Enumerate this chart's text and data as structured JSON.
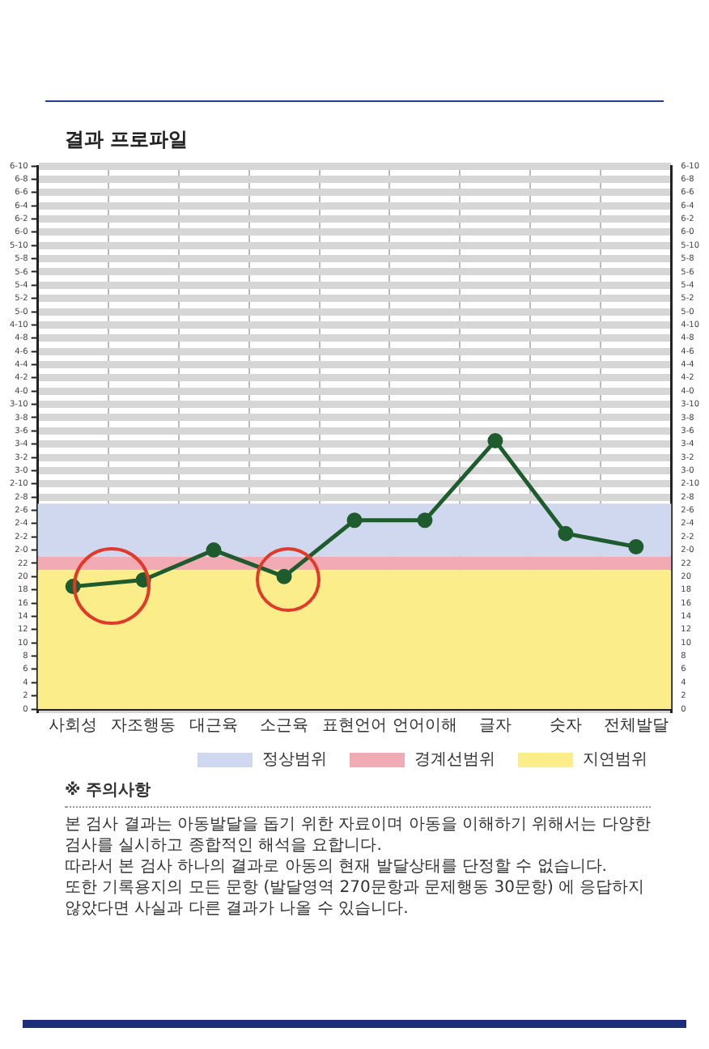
{
  "chart_data": {
    "type": "line",
    "title": "결과 프로파일",
    "categories": [
      "사회성",
      "자조행동",
      "대근육",
      "소근육",
      "표현언어",
      "언어이해",
      "글자",
      "숫자",
      "전체발달"
    ],
    "series": [
      {
        "color": "#1e5c2e",
        "values": [
          18.5,
          19.5,
          24,
          20,
          28.5,
          28.5,
          40.5,
          26.5,
          24.5
        ]
      }
    ],
    "marker": "circle",
    "legend": "bottom right",
    "line_style": "solid",
    "grid": true,
    "ylim": [
      0,
      82
    ],
    "yticks": [
      0,
      2,
      4,
      6,
      8,
      10,
      12,
      14,
      16,
      18,
      20,
      22,
      {
        "value": 24,
        "label": "2-0"
      },
      {
        "value": 26,
        "label": "2-2"
      },
      {
        "value": 28,
        "label": "2-4"
      },
      {
        "value": 30,
        "label": "2-6"
      },
      {
        "value": 32,
        "label": "2-8"
      },
      {
        "value": 34,
        "label": "2-10"
      },
      {
        "value": 36,
        "label": "3-0"
      },
      {
        "value": 38,
        "label": "3-2"
      },
      {
        "value": 40,
        "label": "3-4"
      },
      {
        "value": 42,
        "label": "3-6"
      },
      {
        "value": 44,
        "label": "3-8"
      },
      {
        "value": 46,
        "label": "3-10"
      },
      {
        "value": 48,
        "label": "4-0"
      },
      {
        "value": 50,
        "label": "4-2"
      },
      {
        "value": 52,
        "label": "4-4"
      },
      {
        "value": 54,
        "label": "4-6"
      },
      {
        "value": 56,
        "label": "4-8"
      },
      {
        "value": 58,
        "label": "4-10"
      },
      {
        "value": 60,
        "label": "5-0"
      },
      {
        "value": 62,
        "label": "5-2"
      },
      {
        "value": 64,
        "label": "5-4"
      },
      {
        "value": 66,
        "label": "5-6"
      },
      {
        "value": 68,
        "label": "5-8"
      },
      {
        "value": 70,
        "label": "5-10"
      },
      {
        "value": 72,
        "label": "6-0"
      },
      {
        "value": 74,
        "label": "6-2"
      },
      {
        "value": 76,
        "label": "6-4"
      },
      {
        "value": 78,
        "label": "6-6"
      },
      {
        "value": 80,
        "label": "6-8"
      },
      {
        "value": 82,
        "label": "6-10"
      }
    ],
    "y2lim": [
      0,
      82
    ],
    "y2ticks": [
      0,
      2,
      4,
      6,
      8,
      10,
      12,
      14,
      16,
      18,
      20,
      22,
      {
        "value": 24,
        "label": "2-0"
      },
      {
        "value": 26,
        "label": "2-2"
      },
      {
        "value": 28,
        "label": "2-4"
      },
      {
        "value": 30,
        "label": "2-6"
      },
      {
        "value": 32,
        "label": "2-8"
      },
      {
        "value": 34,
        "label": "2-10"
      },
      {
        "value": 36,
        "label": "3-0"
      },
      {
        "value": 38,
        "label": "3-2"
      },
      {
        "value": 40,
        "label": "3-4"
      },
      {
        "value": 42,
        "label": "3-6"
      },
      {
        "value": 44,
        "label": "3-8"
      },
      {
        "value": 46,
        "label": "3-10"
      },
      {
        "value": 48,
        "label": "4-0"
      },
      {
        "value": 50,
        "label": "4-2"
      },
      {
        "value": 52,
        "label": "4-4"
      },
      {
        "value": 54,
        "label": "4-6"
      },
      {
        "value": 56,
        "label": "4-8"
      },
      {
        "value": 58,
        "label": "4-10"
      },
      {
        "value": 60,
        "label": "5-0"
      },
      {
        "value": 62,
        "label": "5-2"
      },
      {
        "value": 64,
        "label": "5-4"
      },
      {
        "value": 66,
        "label": "5-6"
      },
      {
        "value": 68,
        "label": "5-8"
      },
      {
        "value": 70,
        "label": "5-10"
      },
      {
        "value": 72,
        "label": "6-0"
      },
      {
        "value": 74,
        "label": "6-2"
      },
      {
        "value": 76,
        "label": "6-4"
      },
      {
        "value": 78,
        "label": "6-6"
      },
      {
        "value": 80,
        "label": "6-8"
      },
      {
        "value": 82,
        "label": "6-10"
      }
    ],
    "bands": [
      {
        "axis": "y",
        "from": 23,
        "to": 31,
        "label": "정상범위",
        "color": "#cfd8ee"
      },
      {
        "axis": "y",
        "from": 21,
        "to": 23,
        "label": "경계선범위",
        "color": "#f2aab4"
      },
      {
        "axis": "y",
        "from": 0,
        "to": 21,
        "label": "지연범위",
        "color": "#fbee8a"
      }
    ],
    "annotations": [
      "※ 주의사항",
      "본 검사 결과는 아동발달을 돕기 위한 자료이며 아동을 이해하기 위해서는 다양한 검사를 실시하고 종합적인 해석을 요합니다.",
      "따라서 본 검사 하나의 결과로 아동의 현재 발달상태를 단정할 수 없습니다.",
      "또한 기록용지의 모든 문항 (발달영역 270문항과 문제행동 30문항) 에 응답하지 않았다면 사실과 다른 결과가 나올 수 있습니다."
    ]
  }
}
